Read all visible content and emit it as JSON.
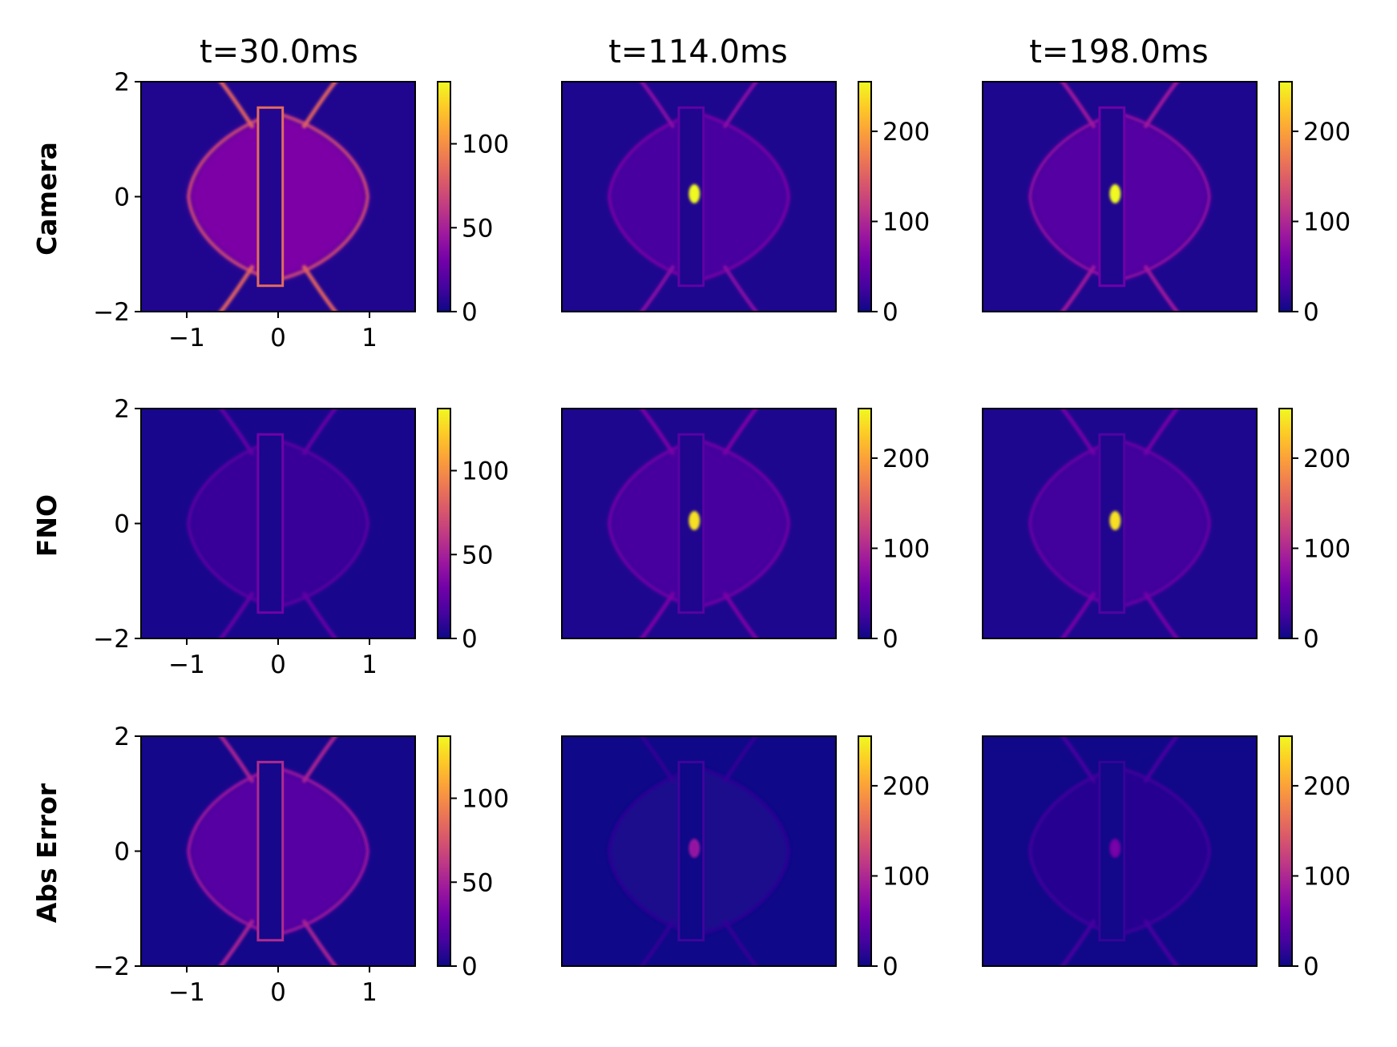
{
  "figure": {
    "columns": [
      {
        "title": "t=30.0ms",
        "colorbar": {
          "max": 137,
          "ticks": [
            0,
            50,
            100
          ]
        }
      },
      {
        "title": "t=114.0ms",
        "colorbar": {
          "max": 255,
          "ticks": [
            0,
            100,
            200
          ]
        }
      },
      {
        "title": "t=198.0ms",
        "colorbar": {
          "max": 255,
          "ticks": [
            0,
            100,
            200
          ]
        }
      }
    ],
    "rows": [
      {
        "label": "Camera",
        "key": "camera"
      },
      {
        "label": "FNO",
        "key": "fno"
      },
      {
        "label": "Abs Error",
        "key": "error"
      }
    ]
  },
  "chart_data": {
    "type": "heatmap",
    "colormap": "plasma",
    "colormap_stops": [
      "#0d0887",
      "#46039f",
      "#7201a8",
      "#9c179e",
      "#bd3786",
      "#d8576b",
      "#ed7953",
      "#fb9f3a",
      "#fdca26",
      "#f0f921"
    ],
    "x_axis": {
      "range": [
        -1.5,
        1.5
      ],
      "ticks": [
        -1,
        0,
        1
      ],
      "tick_labels": [
        "−1",
        "0",
        "1"
      ]
    },
    "y_axis": {
      "range": [
        -2,
        2
      ],
      "ticks": [
        -2,
        0,
        2
      ],
      "tick_labels": [
        "−2",
        "0",
        "2"
      ]
    },
    "panels": [
      {
        "row": "Camera",
        "time": "t=30.0ms",
        "vmin": 0,
        "vmax": 137,
        "plasma_edge": 70,
        "inner_wall": 85,
        "background": 5,
        "hotspot": null
      },
      {
        "row": "Camera",
        "time": "t=114.0ms",
        "vmin": 0,
        "vmax": 255,
        "plasma_edge": 60,
        "inner_wall": 45,
        "background": 8,
        "hotspot": 255
      },
      {
        "row": "Camera",
        "time": "t=198.0ms",
        "vmin": 0,
        "vmax": 255,
        "plasma_edge": 75,
        "inner_wall": 55,
        "background": 8,
        "hotspot": 255
      },
      {
        "row": "FNO",
        "time": "t=30.0ms",
        "vmin": 0,
        "vmax": 137,
        "plasma_edge": 22,
        "inner_wall": 30,
        "background": 3,
        "hotspot": null
      },
      {
        "row": "FNO",
        "time": "t=114.0ms",
        "vmin": 0,
        "vmax": 255,
        "plasma_edge": 55,
        "inner_wall": 40,
        "background": 8,
        "hotspot": 240
      },
      {
        "row": "FNO",
        "time": "t=198.0ms",
        "vmin": 0,
        "vmax": 255,
        "plasma_edge": 50,
        "inner_wall": 35,
        "background": 8,
        "hotspot": 240
      },
      {
        "row": "Abs Error",
        "time": "t=30.0ms",
        "vmin": 0,
        "vmax": 137,
        "plasma_edge": 45,
        "inner_wall": 55,
        "background": 2,
        "hotspot": null
      },
      {
        "row": "Abs Error",
        "time": "t=114.0ms",
        "vmin": 0,
        "vmax": 255,
        "plasma_edge": 15,
        "inner_wall": 25,
        "background": 1,
        "hotspot": 80
      },
      {
        "row": "Abs Error",
        "time": "t=198.0ms",
        "vmin": 0,
        "vmax": 255,
        "plasma_edge": 25,
        "inner_wall": 20,
        "background": 2,
        "hotspot": 60
      }
    ]
  }
}
